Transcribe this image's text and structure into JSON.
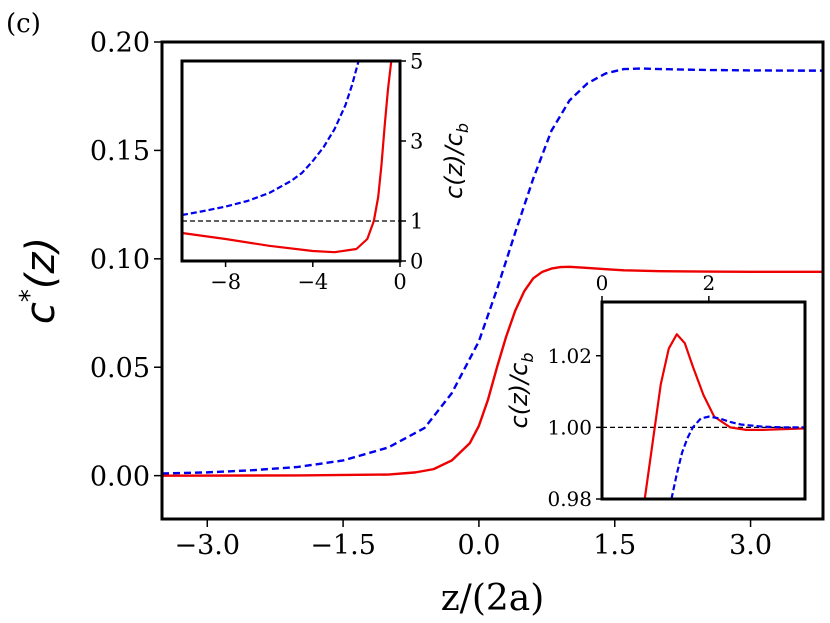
{
  "panel_label": "(c)",
  "chart_data": [
    {
      "type": "line",
      "name": "main",
      "xlabel": "z/(2a)",
      "ylabel_base": "c",
      "ylabel_sup": "*",
      "ylabel_tail": "(z)",
      "xlim": [
        -3.5,
        3.8
      ],
      "ylim": [
        -0.02,
        0.2
      ],
      "xticks": [
        -3.0,
        -1.5,
        0.0,
        1.5,
        3.0
      ],
      "xtick_labels": [
        "−3.0",
        "−1.5",
        "0.0",
        "1.5",
        "3.0"
      ],
      "yticks": [
        0.0,
        0.05,
        0.1,
        0.15,
        0.2
      ],
      "ytick_labels": [
        "0.00",
        "0.05",
        "0.10",
        "0.15",
        "0.20"
      ],
      "series": [
        {
          "name": "blue-dashed",
          "color": "#0000ee",
          "dash": true,
          "x": [
            -3.5,
            -3.0,
            -2.5,
            -2.0,
            -1.5,
            -1.0,
            -0.6,
            -0.3,
            0.0,
            0.2,
            0.4,
            0.6,
            0.8,
            1.0,
            1.2,
            1.4,
            1.6,
            1.8,
            2.0,
            2.5,
            3.0,
            3.5,
            3.8
          ],
          "y": [
            0.001,
            0.0015,
            0.0025,
            0.004,
            0.007,
            0.013,
            0.022,
            0.038,
            0.062,
            0.086,
            0.112,
            0.137,
            0.159,
            0.173,
            0.181,
            0.1855,
            0.1875,
            0.1878,
            0.1875,
            0.1871,
            0.1869,
            0.1868,
            0.1868
          ]
        },
        {
          "name": "red-solid",
          "color": "#ee0000",
          "dash": false,
          "x": [
            -3.5,
            -2.0,
            -1.0,
            -0.7,
            -0.5,
            -0.3,
            -0.1,
            0.0,
            0.1,
            0.2,
            0.3,
            0.4,
            0.5,
            0.6,
            0.7,
            0.8,
            0.9,
            1.0,
            1.2,
            1.4,
            1.6,
            2.0,
            2.5,
            3.0,
            3.8
          ],
          "y": [
            0.0,
            0.0001,
            0.0005,
            0.0015,
            0.003,
            0.007,
            0.015,
            0.023,
            0.035,
            0.05,
            0.064,
            0.076,
            0.085,
            0.091,
            0.094,
            0.0955,
            0.0962,
            0.0963,
            0.0958,
            0.0952,
            0.0947,
            0.0943,
            0.0941,
            0.094,
            0.094
          ]
        }
      ]
    },
    {
      "type": "line",
      "name": "inset-left",
      "ylabel": "c(z)/c_b",
      "ylabel_main": "c(z)/c",
      "ylabel_sub": "b",
      "xlim": [
        -10,
        0
      ],
      "ylim": [
        0,
        5
      ],
      "xticks": [
        -8,
        -4,
        0
      ],
      "xtick_labels": [
        "−8",
        "−4",
        "0"
      ],
      "yticks": [
        0,
        1,
        3,
        5
      ],
      "ytick_labels": [
        "0",
        "1",
        "3",
        "5"
      ],
      "hline": 1,
      "series": [
        {
          "name": "blue-dashed",
          "color": "#0000ee",
          "dash": true,
          "x": [
            -10,
            -9,
            -8,
            -7,
            -6,
            -5,
            -4.5,
            -4,
            -3.5,
            -3,
            -2.5,
            -2.2,
            -1.9
          ],
          "y": [
            1.15,
            1.25,
            1.36,
            1.5,
            1.7,
            2.0,
            2.2,
            2.5,
            2.85,
            3.3,
            3.9,
            4.4,
            5.0
          ]
        },
        {
          "name": "red-solid",
          "color": "#ee0000",
          "dash": false,
          "x": [
            -10,
            -8,
            -6,
            -4,
            -3,
            -2,
            -1.5,
            -1.2,
            -1.0,
            -0.85,
            -0.7,
            -0.55,
            -0.4
          ],
          "y": [
            0.7,
            0.55,
            0.38,
            0.25,
            0.22,
            0.3,
            0.55,
            1.0,
            1.6,
            2.4,
            3.4,
            4.3,
            5.0
          ]
        }
      ]
    },
    {
      "type": "line",
      "name": "inset-right",
      "ylabel": "c(z)/c_b",
      "ylabel_main": "c(z)/c",
      "ylabel_sub": "b",
      "xlim": [
        0,
        3.8
      ],
      "ylim": [
        0.98,
        1.035
      ],
      "xticks": [
        0,
        2
      ],
      "xtick_labels": [
        "0",
        "2"
      ],
      "yticks": [
        0.98,
        1.0,
        1.02
      ],
      "ytick_labels": [
        "0.98",
        "1.00",
        "1.02"
      ],
      "hline": 1.0,
      "series": [
        {
          "name": "red-solid",
          "color": "#ee0000",
          "dash": false,
          "x": [
            0.8,
            0.95,
            1.1,
            1.25,
            1.4,
            1.55,
            1.7,
            1.9,
            2.1,
            2.4,
            2.7,
            3.0,
            3.4,
            3.8
          ],
          "y": [
            0.98,
            0.996,
            1.012,
            1.022,
            1.026,
            1.0235,
            1.017,
            1.009,
            1.003,
            1.0,
            0.9993,
            0.9993,
            0.9995,
            0.9997
          ]
        },
        {
          "name": "blue-dashed",
          "color": "#0000ee",
          "dash": true,
          "x": [
            1.3,
            1.4,
            1.5,
            1.6,
            1.7,
            1.85,
            2.0,
            2.2,
            2.4,
            2.6,
            3.0,
            3.4,
            3.8
          ],
          "y": [
            0.98,
            0.987,
            0.993,
            0.997,
            1.0,
            1.0025,
            1.003,
            1.0025,
            1.0015,
            1.0008,
            1.0002,
            1.0,
            1.0
          ]
        }
      ]
    }
  ]
}
